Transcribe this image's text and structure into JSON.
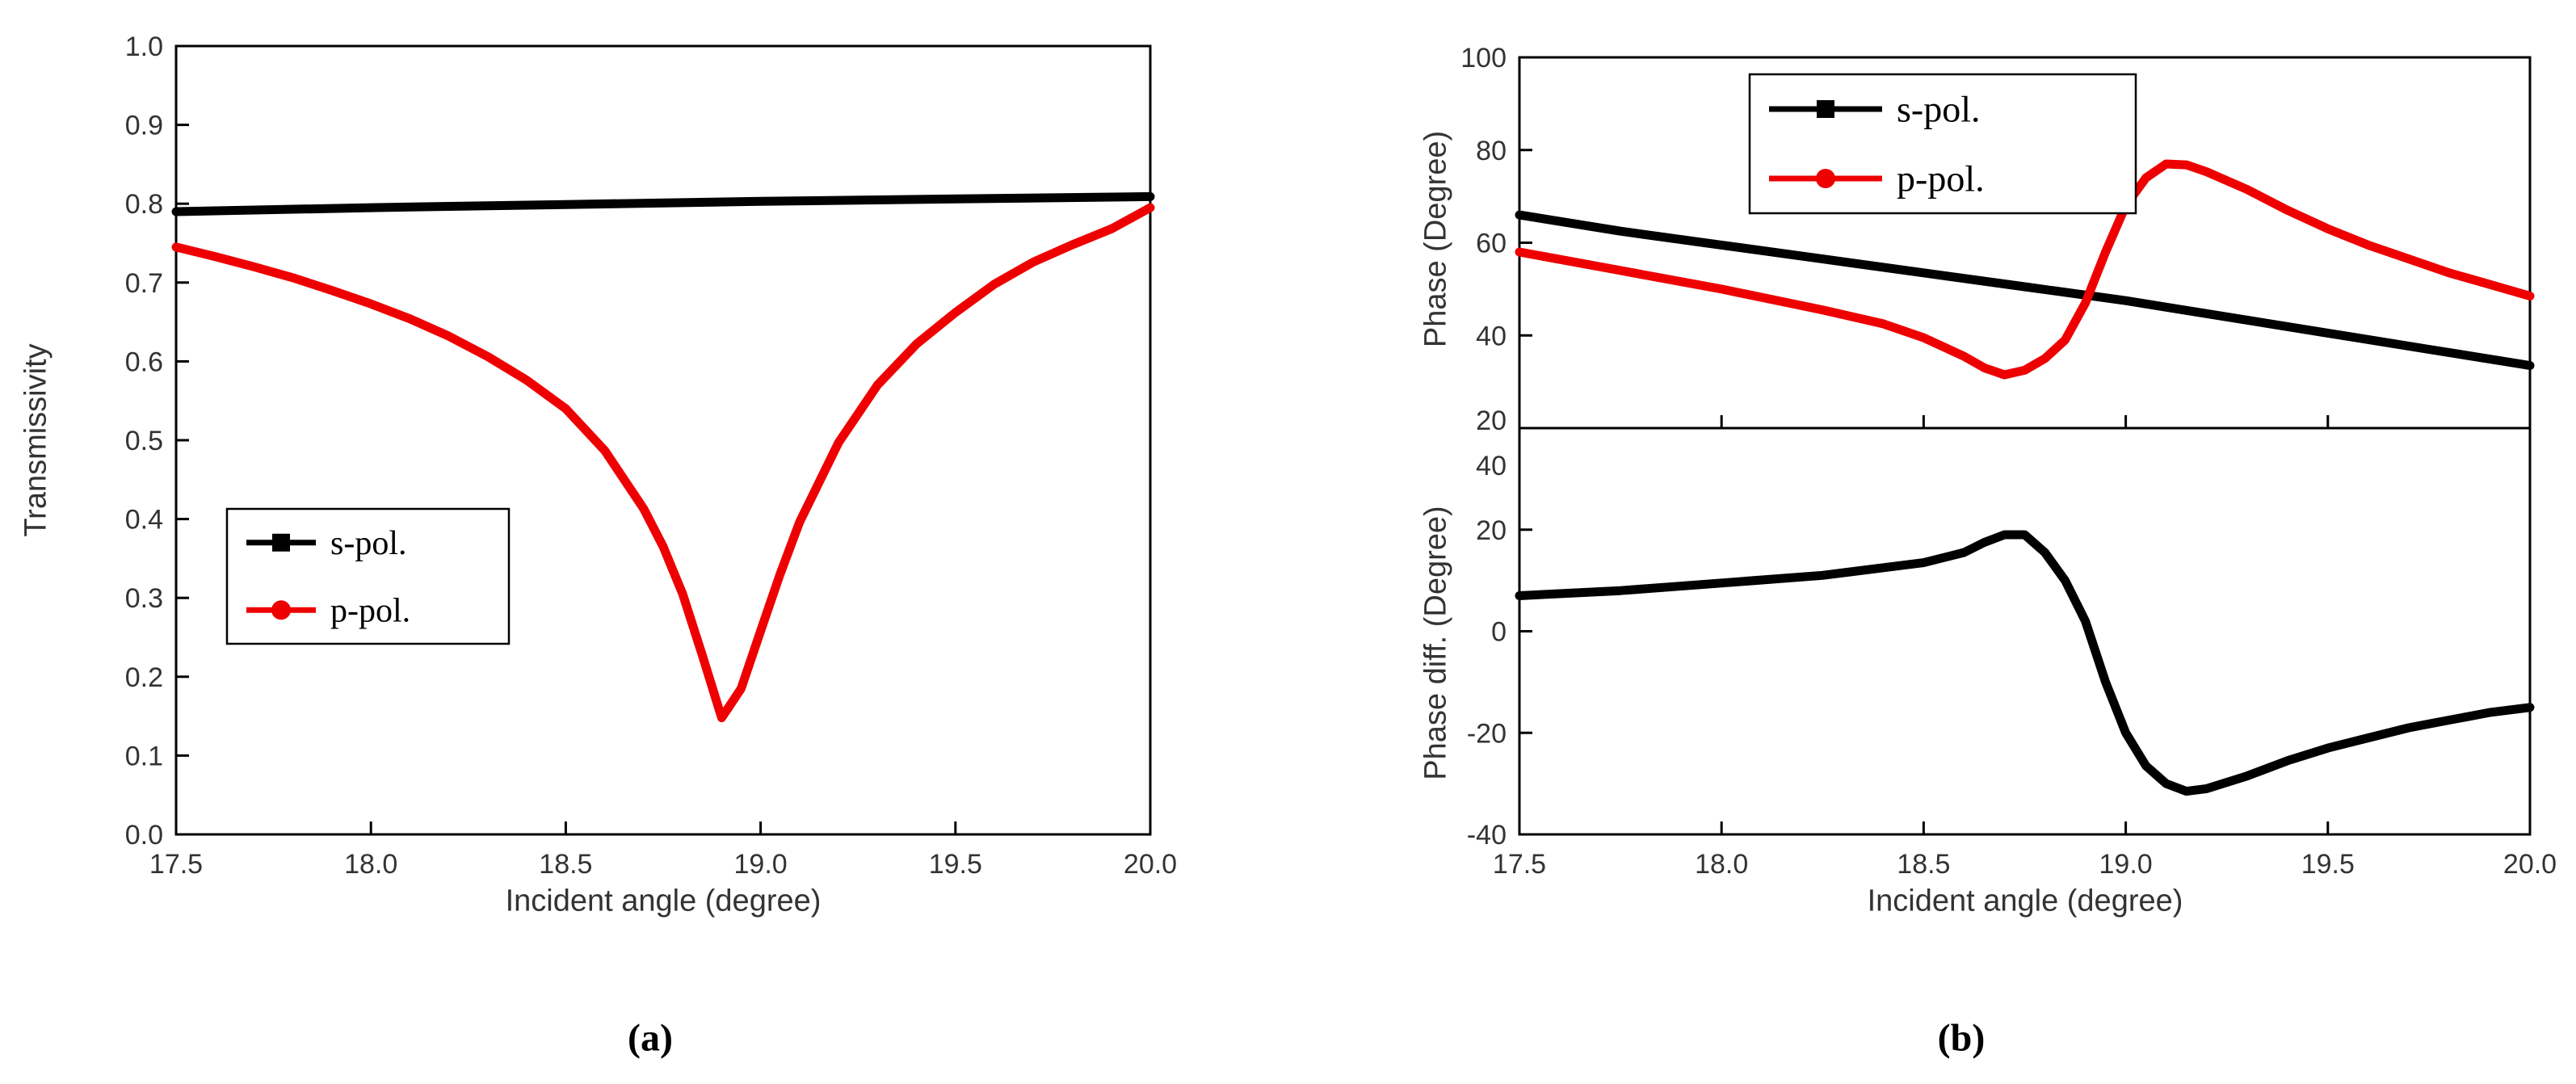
{
  "figure": {
    "background": "#ffffff",
    "panels": [
      {
        "caption": "(a)"
      },
      {
        "caption": "(b)"
      }
    ]
  },
  "colors": {
    "s_pol": "#000000",
    "p_pol": "#ee0000",
    "axis": "#000000",
    "label_text": "#333333"
  },
  "chart_data": [
    {
      "id": "transmissivity-vs-angle",
      "type": "line",
      "title": "",
      "xlabel": "Incident angle (degree)",
      "ylabel": "Transmissivity",
      "xlim": [
        17.5,
        20.0
      ],
      "ylim": [
        0.0,
        1.0
      ],
      "grid": false,
      "xticks": [
        17.5,
        18.0,
        18.5,
        19.0,
        19.5,
        20.0
      ],
      "xtick_labels": [
        "17.5",
        "18.0",
        "18.5",
        "19.0",
        "19.5",
        "20.0"
      ],
      "yticks": [
        0.0,
        0.1,
        0.2,
        0.3,
        0.4,
        0.5,
        0.6,
        0.7,
        0.8,
        0.9,
        1.0
      ],
      "ytick_labels": [
        "0.0",
        "0.1",
        "0.2",
        "0.3",
        "0.4",
        "0.5",
        "0.6",
        "0.7",
        "0.8",
        "0.9",
        "1.0"
      ],
      "legend": {
        "position": "inside-left-middle",
        "entries": [
          {
            "label": "s-pol.",
            "color": "#000000",
            "marker": "square"
          },
          {
            "label": "p-pol.",
            "color": "#ee0000",
            "marker": "circle"
          }
        ]
      },
      "series": [
        {
          "name": "s-pol.",
          "color": "#000000",
          "marker": "square",
          "x": [
            17.5,
            18.0,
            18.5,
            19.0,
            19.5,
            20.0
          ],
          "y": [
            0.79,
            0.795,
            0.799,
            0.803,
            0.806,
            0.809
          ]
        },
        {
          "name": "p-pol.",
          "color": "#ee0000",
          "marker": "circle",
          "x": [
            17.5,
            17.6,
            17.7,
            17.8,
            17.9,
            18.0,
            18.1,
            18.2,
            18.3,
            18.4,
            18.5,
            18.6,
            18.7,
            18.75,
            18.8,
            18.85,
            18.9,
            18.95,
            19.0,
            19.05,
            19.1,
            19.2,
            19.3,
            19.4,
            19.5,
            19.6,
            19.7,
            19.8,
            19.9,
            20.0
          ],
          "y": [
            0.745,
            0.733,
            0.72,
            0.706,
            0.69,
            0.673,
            0.654,
            0.632,
            0.606,
            0.576,
            0.54,
            0.487,
            0.413,
            0.365,
            0.305,
            0.228,
            0.148,
            0.185,
            0.258,
            0.33,
            0.396,
            0.497,
            0.57,
            0.622,
            0.662,
            0.698,
            0.726,
            0.748,
            0.768,
            0.795
          ]
        }
      ]
    },
    {
      "id": "phase-vs-angle",
      "type": "line",
      "title": "",
      "xlabel": "",
      "ylabel": "Phase (Degree)",
      "xlim": [
        17.5,
        20.0
      ],
      "ylim": [
        20,
        100
      ],
      "grid": false,
      "xticks": [
        17.5,
        18.0,
        18.5,
        19.0,
        19.5,
        20.0
      ],
      "xtick_labels": [],
      "yticks": [
        20,
        40,
        60,
        80,
        100
      ],
      "ytick_labels": [
        "20",
        "40",
        "60",
        "80",
        "100"
      ],
      "legend": {
        "position": "inside-top-center",
        "entries": [
          {
            "label": "s-pol.",
            "color": "#000000",
            "marker": "square"
          },
          {
            "label": "p-pol.",
            "color": "#ee0000",
            "marker": "circle"
          }
        ]
      },
      "series": [
        {
          "name": "s-pol.",
          "color": "#000000",
          "marker": "square",
          "x": [
            17.5,
            17.75,
            18.0,
            18.25,
            18.5,
            18.75,
            19.0,
            19.25,
            19.5,
            19.75,
            20.0
          ],
          "y": [
            66.0,
            62.5,
            59.5,
            56.5,
            53.5,
            50.5,
            47.5,
            44.0,
            40.5,
            37.0,
            33.5
          ]
        },
        {
          "name": "p-pol.",
          "color": "#ee0000",
          "marker": "circle",
          "x": [
            17.5,
            17.75,
            18.0,
            18.25,
            18.4,
            18.5,
            18.6,
            18.65,
            18.7,
            18.75,
            18.8,
            18.85,
            18.9,
            18.95,
            19.0,
            19.05,
            19.1,
            19.15,
            19.2,
            19.3,
            19.4,
            19.5,
            19.6,
            19.7,
            19.8,
            19.9,
            20.0
          ],
          "y": [
            58.0,
            54.0,
            50.0,
            45.5,
            42.5,
            39.5,
            35.5,
            33.0,
            31.5,
            32.5,
            35.0,
            39.0,
            47.0,
            58.0,
            68.0,
            74.0,
            77.0,
            76.8,
            75.3,
            71.5,
            67.0,
            63.0,
            59.5,
            56.5,
            53.5,
            51.0,
            48.5
          ]
        }
      ]
    },
    {
      "id": "phase-diff-vs-angle",
      "type": "line",
      "title": "",
      "xlabel": "Incident angle (degree)",
      "ylabel": "Phase diff. (Degree)",
      "xlim": [
        17.5,
        20.0
      ],
      "ylim": [
        -40,
        40
      ],
      "grid": false,
      "xticks": [
        17.5,
        18.0,
        18.5,
        19.0,
        19.5,
        20.0
      ],
      "xtick_labels": [
        "17.5",
        "18.0",
        "18.5",
        "19.0",
        "19.5",
        "20.0"
      ],
      "yticks": [
        -40,
        -20,
        0,
        20,
        40
      ],
      "ytick_labels": [
        "-40",
        "-20",
        "0",
        "20",
        "40"
      ],
      "legend": null,
      "series": [
        {
          "name": "phase difference",
          "color": "#000000",
          "marker": "none",
          "x": [
            17.5,
            17.75,
            18.0,
            18.25,
            18.5,
            18.6,
            18.65,
            18.7,
            18.75,
            18.8,
            18.85,
            18.9,
            18.95,
            19.0,
            19.05,
            19.1,
            19.15,
            19.2,
            19.3,
            19.4,
            19.5,
            19.6,
            19.7,
            19.8,
            19.9,
            20.0
          ],
          "y": [
            7.0,
            8.0,
            9.5,
            11.0,
            13.5,
            15.5,
            17.5,
            19.0,
            19.0,
            15.5,
            10.0,
            2.0,
            -10.0,
            -20.0,
            -26.5,
            -30.0,
            -31.5,
            -31.0,
            -28.5,
            -25.5,
            -23.0,
            -21.0,
            -19.0,
            -17.5,
            -16.0,
            -15.0
          ]
        }
      ]
    }
  ]
}
